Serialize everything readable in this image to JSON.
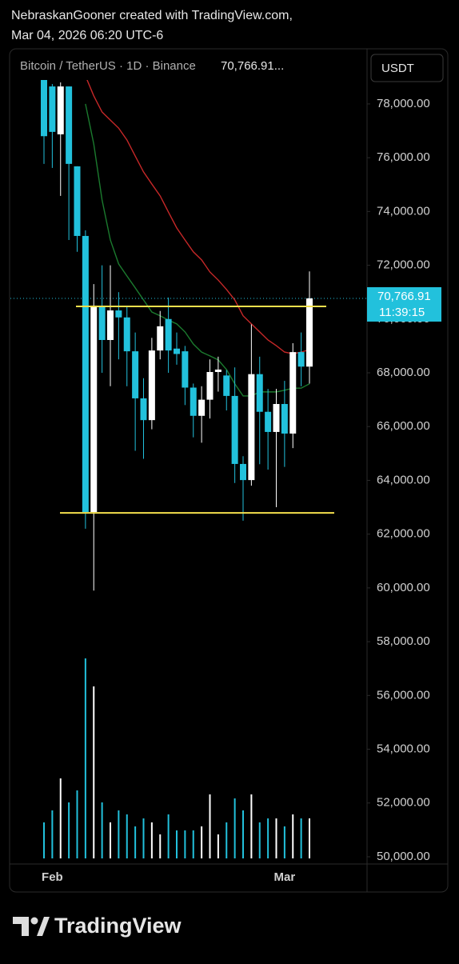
{
  "header": {
    "line1": "NebraskanGooner created with TradingView.com,",
    "line2": "Mar 04, 2026 06:20 UTC-6"
  },
  "footer": {
    "logo": "TradingView"
  },
  "chart_data": {
    "type": "candlestick",
    "symbol": "Bitcoin / TetherUS · 1D · Binance",
    "last_text": "70,766.91...",
    "currency": "USDT",
    "last_price": {
      "value": 70766.91,
      "label": "70,766.91"
    },
    "countdown": "11:39:15",
    "categories": [
      null,
      "Feb",
      null,
      null,
      null,
      null,
      null,
      null,
      null,
      null,
      null,
      null,
      null,
      null,
      null,
      null,
      null,
      null,
      null,
      null,
      null,
      null,
      null,
      null,
      null,
      null,
      null,
      null,
      null,
      "Mar",
      null,
      null,
      null
    ],
    "open": [
      78900,
      78650,
      76870,
      78650,
      75680,
      73090,
      62820,
      70500,
      69220,
      70320,
      70060,
      68800,
      67050,
      66240,
      68830,
      70000,
      68900,
      68800,
      67450,
      66400,
      67000,
      68030,
      67900,
      67140,
      64610,
      64010,
      67950,
      66550,
      65800,
      66840,
      65740,
      68770,
      68230
    ],
    "high": [
      79500,
      78740,
      78800,
      78650,
      75680,
      73300,
      71300,
      72000,
      72000,
      71000,
      70500,
      69500,
      67800,
      69300,
      70300,
      70800,
      69500,
      69000,
      67600,
      67500,
      68500,
      68600,
      68100,
      68200,
      64900,
      69800,
      68600,
      67400,
      67400,
      67700,
      69100,
      69500,
      71770
    ],
    "low": [
      75770,
      75620,
      74580,
      72940,
      72500,
      62200,
      59900,
      68000,
      67500,
      68500,
      67500,
      65100,
      64800,
      65900,
      68500,
      68000,
      68300,
      66800,
      65600,
      65400,
      66300,
      67300,
      66600,
      63900,
      62500,
      63800,
      64600,
      64400,
      63000,
      64500,
      65200,
      67500,
      67600
    ],
    "close": [
      76800,
      76960,
      78650,
      75770,
      73090,
      62820,
      70500,
      69220,
      70320,
      70060,
      68800,
      67050,
      66240,
      68830,
      69730,
      68830,
      68700,
      67450,
      66400,
      67000,
      68030,
      68120,
      67140,
      64610,
      64010,
      67950,
      66550,
      65800,
      66840,
      65740,
      68770,
      68230,
      70767
    ],
    "volume": [
      45,
      60,
      100,
      70,
      85,
      250,
      215,
      70,
      45,
      60,
      55,
      40,
      50,
      45,
      30,
      55,
      35,
      35,
      35,
      40,
      80,
      30,
      45,
      75,
      60,
      80,
      45,
      50,
      50,
      40,
      55,
      50,
      50
    ],
    "up_color": "#ffffff",
    "down_color": "#22c1dc",
    "series": [
      {
        "color": "#c62828",
        "values": [
          null,
          null,
          null,
          null,
          null,
          79040,
          78300,
          77700,
          77400,
          77100,
          76660,
          76060,
          75470,
          75020,
          74580,
          73980,
          73390,
          72940,
          72500,
          72200,
          71750,
          71450,
          71100,
          70710,
          70120,
          69820,
          69520,
          69220,
          69010,
          68770,
          68710,
          68770,
          68860
        ]
      },
      {
        "color": "#1b7a2e",
        "values": [
          null,
          null,
          null,
          null,
          null,
          78000,
          76510,
          74430,
          72940,
          72050,
          71600,
          71160,
          70710,
          70260,
          70120,
          69960,
          69820,
          69520,
          69070,
          68770,
          68630,
          68480,
          68120,
          67590,
          67140,
          67140,
          67290,
          67290,
          67290,
          67350,
          67430,
          67430,
          67590
        ]
      }
    ],
    "hlines": [
      {
        "value": 70470,
        "color": "#f4e04d"
      },
      {
        "value": 62790,
        "color": "#f4e04d"
      }
    ],
    "ylim": [
      49880,
      80080
    ],
    "yticks": [
      {
        "value": 50000,
        "label": "50,000.00"
      },
      {
        "value": 52000,
        "label": "52,000.00"
      },
      {
        "value": 54000,
        "label": "54,000.00"
      },
      {
        "value": 56000,
        "label": "56,000.00"
      },
      {
        "value": 58000,
        "label": "58,000.00"
      },
      {
        "value": 60000,
        "label": "60,000.00"
      },
      {
        "value": 62000,
        "label": "62,000.00"
      },
      {
        "value": 64000,
        "label": "64,000.00"
      },
      {
        "value": 66000,
        "label": "66,000.00"
      },
      {
        "value": 68000,
        "label": "68,000.00"
      },
      {
        "value": 70000,
        "label": "70,000.00"
      },
      {
        "value": 72000,
        "label": "72,000.00"
      },
      {
        "value": 74000,
        "label": "74,000.00"
      },
      {
        "value": 76000,
        "label": "76,000.00"
      },
      {
        "value": 78000,
        "label": "78,000.00"
      }
    ]
  }
}
